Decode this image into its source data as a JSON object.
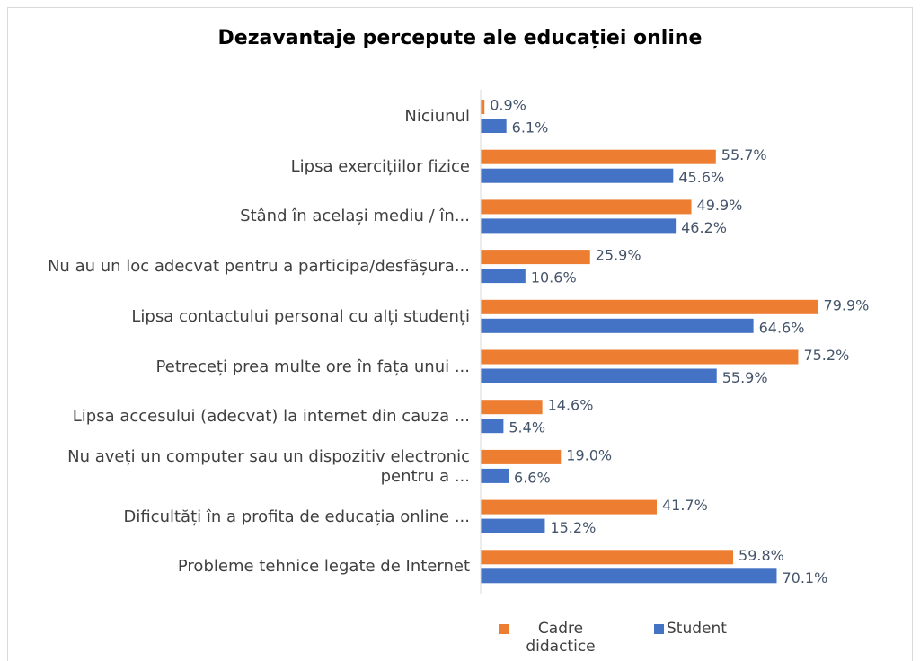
{
  "chart_data": {
    "type": "bar",
    "orientation": "horizontal",
    "title": "Dezavantaje percepute ale educației online",
    "categories": [
      "Niciunul",
      "Lipsa exercițiilor fizice",
      "Stând în același mediu / în...",
      "Nu au un loc adecvat pentru a participa/desfășura...",
      "Lipsa contactului personal cu alți studenți",
      "Petreceți prea multe ore în fața unui ...",
      "Lipsa accesului (adecvat) la internet din cauza ...",
      "Nu aveți un computer sau un dispozitiv electronic pentru a ...",
      "Dificultăți în a profita de educația online ...",
      "Probleme tehnice legate de Internet"
    ],
    "series": [
      {
        "name": "Cadre didactice",
        "color": "#ed7d31",
        "values": [
          0.9,
          55.7,
          49.9,
          25.9,
          79.9,
          75.2,
          14.6,
          19.0,
          41.7,
          59.8
        ],
        "value_labels": [
          "0.9%",
          "55.7%",
          "49.9%",
          "25.9%",
          "79.9%",
          "75.2%",
          "14.6%",
          "19.0%",
          "41.7%",
          "59.8%"
        ]
      },
      {
        "name": "Student",
        "color": "#4472c4",
        "values": [
          6.1,
          45.6,
          46.2,
          10.6,
          64.6,
          55.9,
          5.4,
          6.6,
          15.2,
          70.1
        ],
        "value_labels": [
          "6.1%",
          "45.6%",
          "46.2%",
          "10.6%",
          "64.6%",
          "55.9%",
          "5.4%",
          "6.6%",
          "15.2%",
          "70.1%"
        ]
      }
    ],
    "xlim": [
      0,
      100
    ],
    "legend": "bottom"
  }
}
